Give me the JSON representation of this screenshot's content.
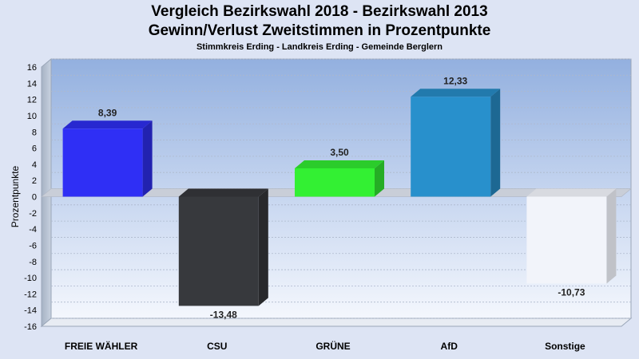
{
  "chart_data": {
    "type": "bar",
    "title": "Vergleich Bezirkswahl 2018 - Bezirkswahl 2013",
    "subtitle": "Gewinn/Verlust Zweitstimmen in Prozentpunkte",
    "subsubtitle": "Stimmkreis Erding - Landkreis Erding - Gemeinde Berglern",
    "ylabel": "Prozentpunkte",
    "xlabel": "",
    "ylim": [
      -16,
      16
    ],
    "yticks": [
      16,
      14,
      12,
      10,
      8,
      6,
      4,
      2,
      0,
      -2,
      -4,
      -6,
      -8,
      -10,
      -12,
      -14,
      -16
    ],
    "categories": [
      "FREIE WÄHLER",
      "CSU",
      "GRÜNE",
      "AfD",
      "Sonstige"
    ],
    "values": [
      8.39,
      -13.48,
      3.5,
      12.33,
      -10.73
    ],
    "value_labels": [
      "8,39",
      "-13,48",
      "3,50",
      "12,33",
      "-10,73"
    ],
    "colors": [
      "#2f2ff5",
      "#37393d",
      "#33f033",
      "#2890cc",
      "#f2f4fa"
    ],
    "grid": true,
    "legend": "none"
  }
}
